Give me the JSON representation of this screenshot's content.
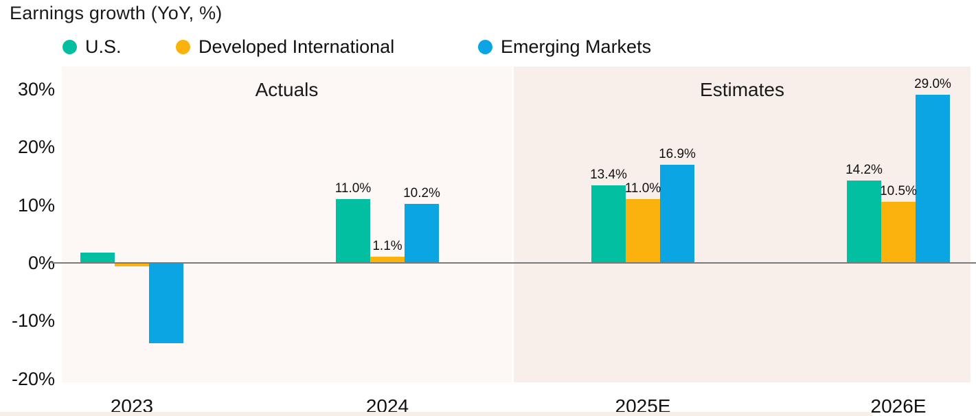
{
  "title": "Earnings growth (YoY, %)",
  "colors": {
    "us": "#03BFA1",
    "dev_intl": "#FCB20D",
    "em": "#0AA5E2",
    "actuals_bg": "#FDF8F5",
    "estimates_bg": "#F8EFEA",
    "bottom_strip": "#F8EEE8",
    "axis_line": "#7A7A7A",
    "text": "#1A1A1A"
  },
  "legend": [
    {
      "label": "U.S.",
      "color_key": "us"
    },
    {
      "label": "Developed International",
      "color_key": "dev_intl"
    },
    {
      "label": "Emerging Markets",
      "color_key": "em"
    }
  ],
  "chart_data": {
    "type": "bar",
    "categories": [
      "2023",
      "2024",
      "2025E",
      "2026E"
    ],
    "series": [
      {
        "name": "U.S.",
        "color_key": "us",
        "values": [
          1.8,
          11.0,
          13.4,
          14.2
        ],
        "labels": [
          null,
          "11.0%",
          "13.4%",
          "14.2%"
        ]
      },
      {
        "name": "Developed International",
        "color_key": "dev_intl",
        "values": [
          -0.6,
          1.1,
          11.0,
          10.5
        ],
        "labels": [
          null,
          "1.1%",
          "11.0%",
          "10.5%"
        ]
      },
      {
        "name": "Emerging Markets",
        "color_key": "em",
        "values": [
          -13.9,
          10.2,
          16.9,
          29.0
        ],
        "labels": [
          null,
          "10.2%",
          "16.9%",
          "29.0%"
        ]
      }
    ],
    "title": "Earnings growth (YoY, %)",
    "xlabel": "",
    "ylabel": "",
    "ytick_values": [
      30,
      20,
      10,
      0,
      -10,
      -20
    ],
    "ytick_labels": [
      "30%",
      "20%",
      "10%",
      "0%",
      "-10%",
      "-20%"
    ],
    "ylim": [
      -21,
      34
    ],
    "grid": false,
    "legend_position": "top",
    "sections": [
      {
        "label": "Actuals",
        "categories": [
          "2023",
          "2024"
        ]
      },
      {
        "label": "Estimates",
        "categories": [
          "2025E",
          "2026E"
        ]
      }
    ]
  }
}
